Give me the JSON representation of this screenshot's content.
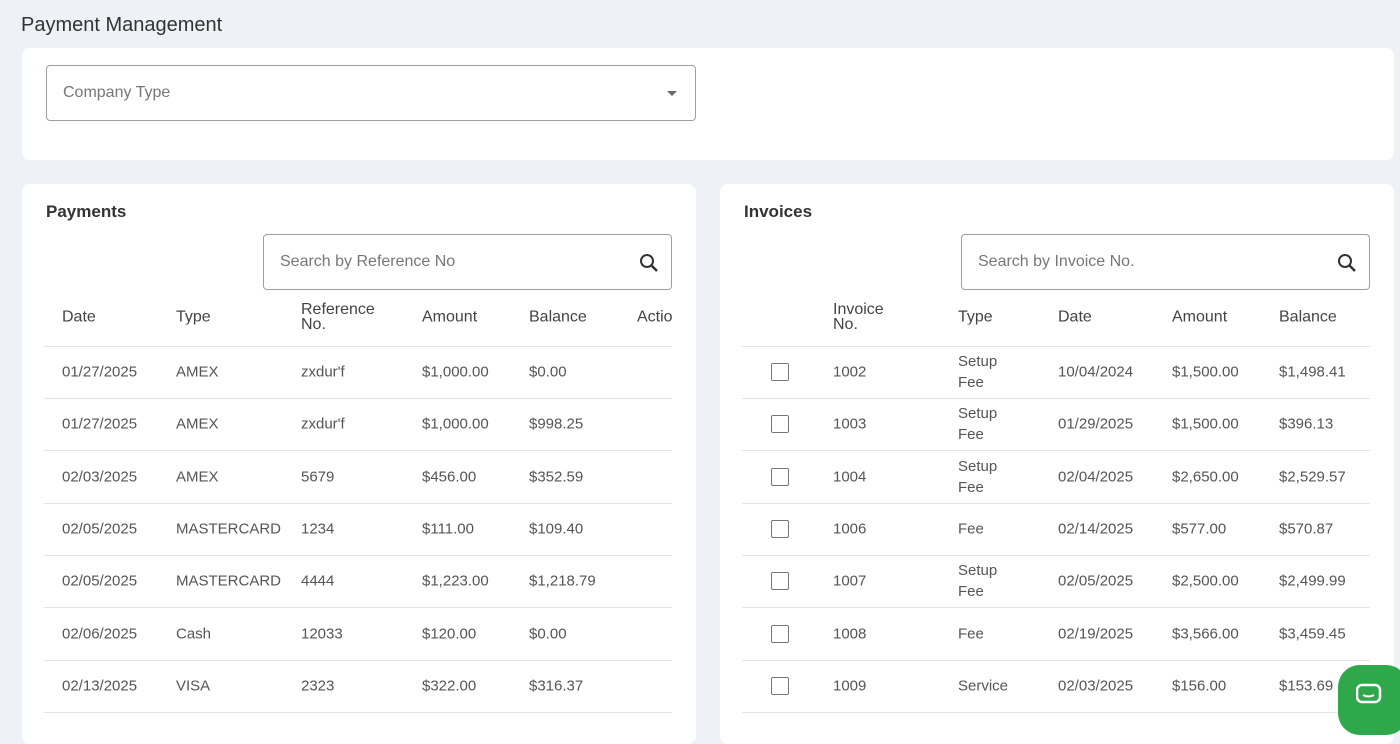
{
  "header": {
    "title": "Payment Management"
  },
  "filter": {
    "placeholder": "Company Type"
  },
  "payments": {
    "title": "Payments",
    "search_placeholder": "Search by Reference No",
    "columns": [
      "Date",
      "Type",
      "Reference No.",
      "Amount",
      "Balance",
      "Actio"
    ],
    "rows": [
      [
        "01/27/2025",
        "AMEX",
        "zxdur'f",
        "$1,000.00",
        "$0.00"
      ],
      [
        "01/27/2025",
        "AMEX",
        "zxdur'f",
        "$1,000.00",
        "$998.25"
      ],
      [
        "02/03/2025",
        "AMEX",
        "5679",
        "$456.00",
        "$352.59"
      ],
      [
        "02/05/2025",
        "MASTERCARD",
        "1234",
        "$111.00",
        "$109.40"
      ],
      [
        "02/05/2025",
        "MASTERCARD",
        "4444",
        "$1,223.00",
        "$1,218.79"
      ],
      [
        "02/06/2025",
        "Cash",
        "12033",
        "$120.00",
        "$0.00"
      ],
      [
        "02/13/2025",
        "VISA",
        "2323",
        "$322.00",
        "$316.37"
      ]
    ]
  },
  "invoices": {
    "title": "Invoices",
    "search_placeholder": "Search by Invoice No.",
    "columns": [
      "Invoice No.",
      "Type",
      "Date",
      "Amount",
      "Balance"
    ],
    "rows": [
      [
        "1002",
        "Setup Fee",
        "10/04/2024",
        "$1,500.00",
        "$1,498.41"
      ],
      [
        "1003",
        "Setup Fee",
        "01/29/2025",
        "$1,500.00",
        "$396.13"
      ],
      [
        "1004",
        "Setup Fee",
        "02/04/2025",
        "$2,650.00",
        "$2,529.57"
      ],
      [
        "1006",
        "Fee",
        "02/14/2025",
        "$577.00",
        "$570.87"
      ],
      [
        "1007",
        "Setup Fee",
        "02/05/2025",
        "$2,500.00",
        "$2,499.99"
      ],
      [
        "1008",
        "Fee",
        "02/19/2025",
        "$3,566.00",
        "$3,459.45"
      ],
      [
        "1009",
        "Service",
        "02/03/2025",
        "$156.00",
        "$153.69"
      ]
    ]
  }
}
